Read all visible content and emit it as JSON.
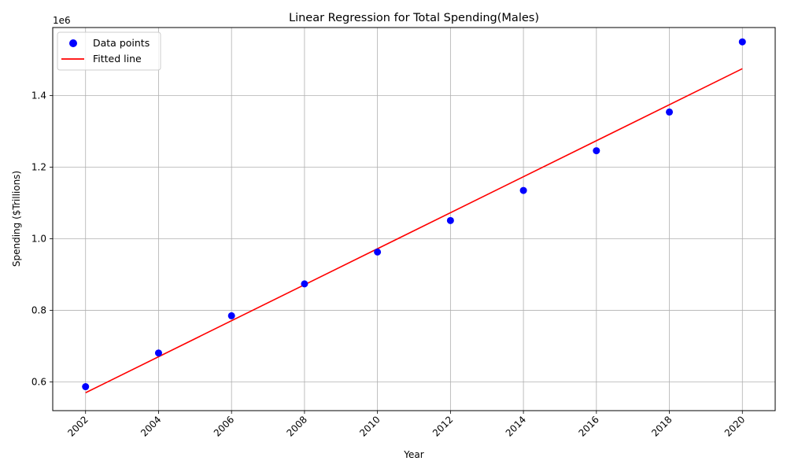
{
  "chart_data": {
    "type": "scatter",
    "title": "Linear Regression for Total Spending(Males)",
    "xlabel": "Year",
    "ylabel": "Spending ($Trillions)",
    "y_offset_label": "1e6",
    "x_ticks": [
      2002,
      2004,
      2006,
      2008,
      2010,
      2012,
      2014,
      2016,
      2018,
      2020
    ],
    "y_ticks": [
      0.6,
      0.8,
      1.0,
      1.2,
      1.4
    ],
    "y_tick_labels": [
      "0.6",
      "0.8",
      "1.0",
      "1.2",
      "1.4"
    ],
    "x_tick_labels": [
      "2002",
      "2004",
      "2006",
      "2008",
      "2010",
      "2012",
      "2014",
      "2016",
      "2018",
      "2020"
    ],
    "xlim": [
      2001.1,
      2020.9
    ],
    "ylim": [
      0.52,
      1.59
    ],
    "grid": true,
    "legend_position": "top-left",
    "series": [
      {
        "name": "Data points",
        "kind": "scatter",
        "color": "#0000ff",
        "x": [
          2002,
          2004,
          2006,
          2008,
          2010,
          2012,
          2014,
          2016,
          2018,
          2020
        ],
        "y": [
          0.587,
          0.681,
          0.785,
          0.874,
          0.963,
          1.051,
          1.135,
          1.246,
          1.354,
          1.55
        ]
      },
      {
        "name": "Fitted line",
        "kind": "line",
        "color": "#ff0000",
        "x": [
          2002,
          2020
        ],
        "y": [
          0.57,
          1.475
        ]
      }
    ]
  }
}
